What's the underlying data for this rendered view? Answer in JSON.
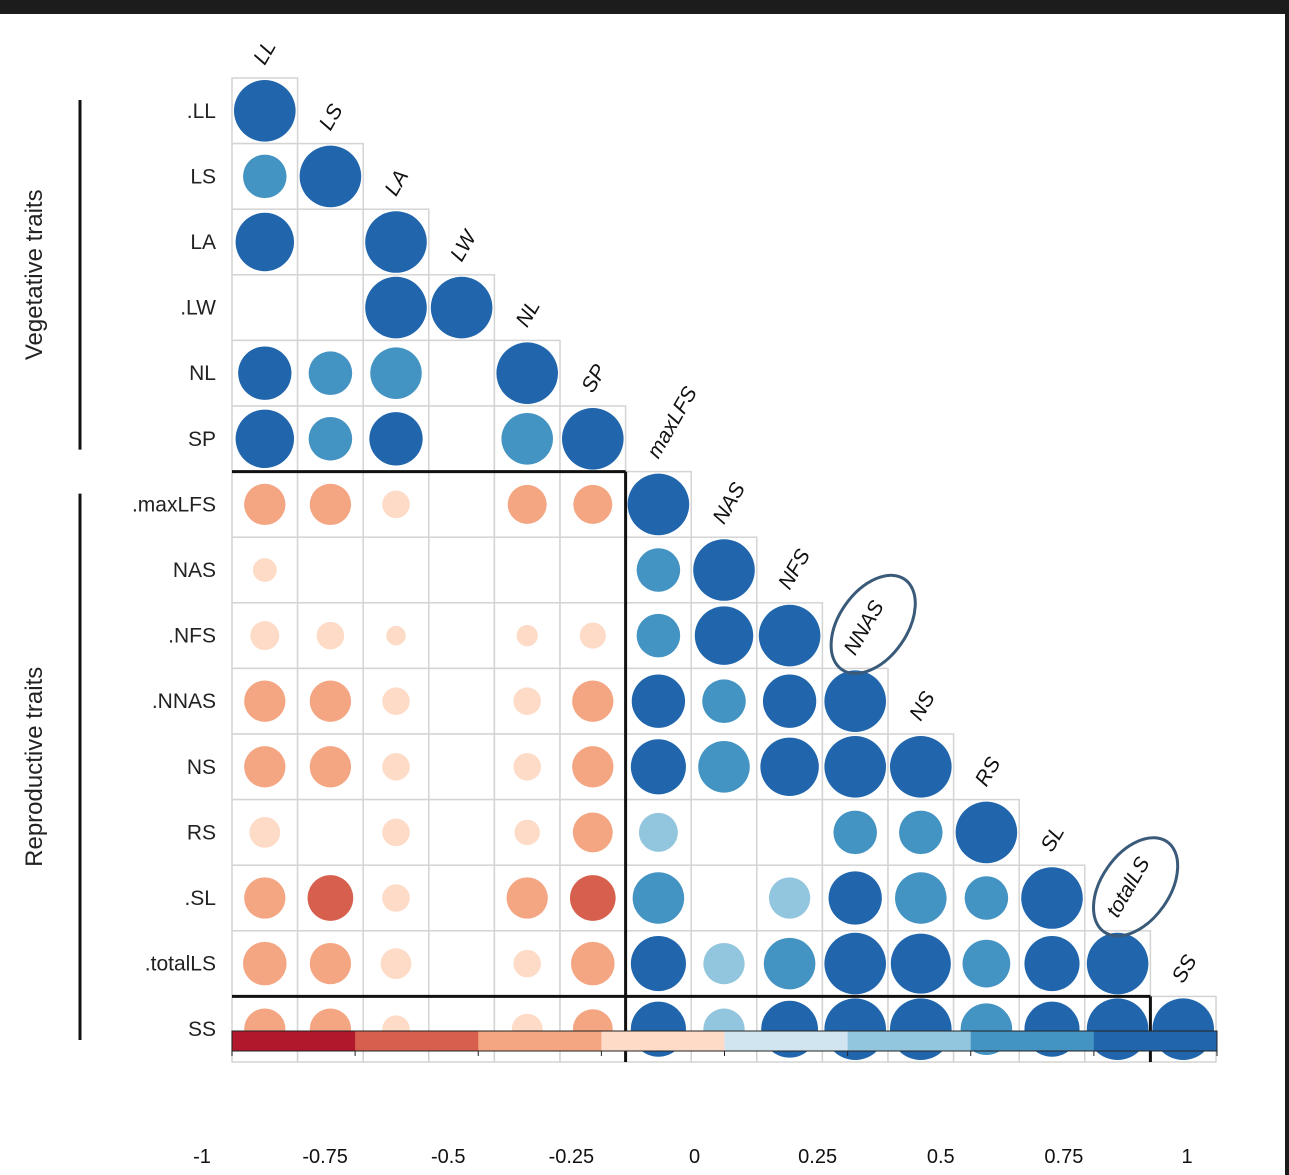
{
  "chart_data": {
    "type": "heatmap",
    "variables": [
      "LL",
      "LS",
      "LA",
      "LW",
      "NL",
      "SP",
      "maxLFS",
      "NAS",
      "NFS",
      "NNAS",
      "NS",
      "RS",
      "SL",
      "totalLS",
      "SS"
    ],
    "row_labels": [
      ".LL",
      "LS",
      "LA",
      ".LW",
      "NL",
      "SP",
      ".maxLFS",
      "NAS",
      ".NFS",
      ".NNAS",
      "NS",
      "RS",
      ".SL",
      ".totalLS",
      "SS"
    ],
    "column_labels": [
      "LL",
      "LS",
      "LA",
      "LW",
      "NL",
      "SP",
      "maxLFS",
      "NAS",
      "NFS",
      "NNAS",
      "NS",
      "RS",
      "SL",
      "totalLS",
      "SS"
    ],
    "circled_labels": [
      "NNAS",
      "totalLS"
    ],
    "groups": [
      {
        "label": "Vegetative traits",
        "rows": [
          0,
          5
        ]
      },
      {
        "label": "Reproductive traits",
        "rows": [
          6,
          14
        ]
      }
    ],
    "correlations": [
      [
        1.0
      ],
      [
        0.5,
        1.0
      ],
      [
        0.9,
        null,
        1.0
      ],
      [
        null,
        null,
        1.0,
        1.0
      ],
      [
        0.75,
        0.5,
        0.7,
        null,
        1.0
      ],
      [
        0.9,
        0.5,
        0.75,
        null,
        0.7,
        1.0
      ],
      [
        -0.45,
        -0.45,
        -0.2,
        null,
        -0.4,
        -0.4,
        1.0
      ],
      [
        -0.15,
        null,
        null,
        null,
        null,
        null,
        0.5,
        1.0
      ],
      [
        -0.22,
        -0.2,
        -0.1,
        null,
        -0.12,
        -0.18,
        0.5,
        0.9,
        1.0
      ],
      [
        -0.45,
        -0.45,
        -0.2,
        null,
        -0.2,
        -0.45,
        0.75,
        0.5,
        0.75,
        1.0
      ],
      [
        -0.45,
        -0.45,
        -0.2,
        null,
        -0.2,
        -0.45,
        0.8,
        0.7,
        0.9,
        1.0,
        1.0
      ],
      [
        -0.25,
        null,
        -0.2,
        null,
        -0.17,
        -0.42,
        0.4,
        null,
        null,
        0.5,
        0.5,
        1.0
      ],
      [
        -0.45,
        -0.55,
        -0.2,
        null,
        -0.45,
        -0.55,
        0.7,
        null,
        0.45,
        0.75,
        0.7,
        0.5,
        1.0
      ],
      [
        -0.5,
        -0.45,
        -0.25,
        null,
        -0.2,
        -0.5,
        0.8,
        0.45,
        0.7,
        1.0,
        0.95,
        0.6,
        0.8,
        1.0
      ],
      [
        -0.45,
        -0.45,
        -0.2,
        null,
        -0.25,
        -0.42,
        0.8,
        0.45,
        0.85,
        1.0,
        1.0,
        0.7,
        0.8,
        1.0,
        1.0
      ]
    ],
    "colorbar": {
      "ticks": [
        "-1",
        "-0.75",
        "-0.5",
        "-0.25",
        "0",
        "0.25",
        "0.5",
        "0.75",
        "1"
      ],
      "range": [
        -1,
        1
      ],
      "colors": [
        "#b2182b",
        "#d6604d",
        "#f4a582",
        "#fddbc7",
        "#d1e5f0",
        "#92c5de",
        "#4393c3",
        "#2166ac"
      ]
    },
    "xlabel": "",
    "ylabel": "",
    "title": ""
  }
}
